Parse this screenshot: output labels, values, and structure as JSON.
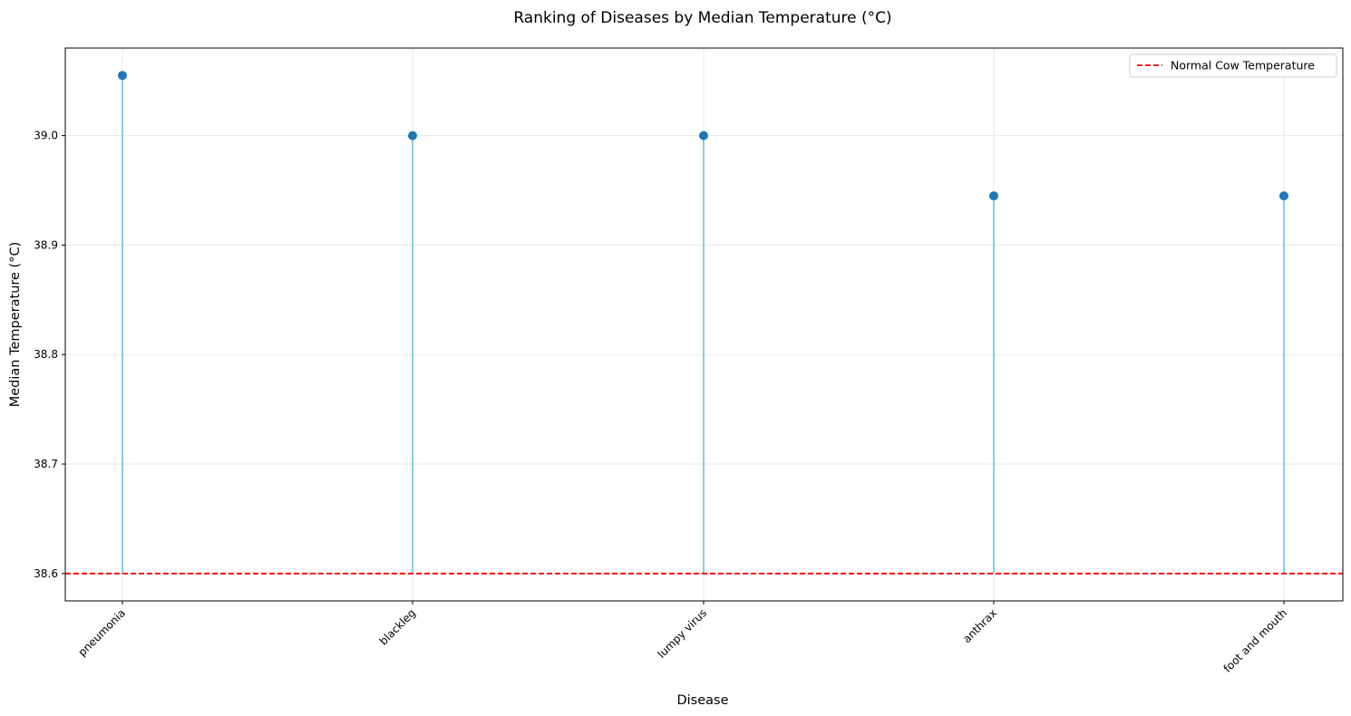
{
  "chart_data": {
    "type": "lollipop",
    "title": "Ranking of Diseases by Median Temperature (°C)",
    "xlabel": "Disease",
    "ylabel": "Median Temperature (°C)",
    "categories": [
      "pneumonia",
      "blackleg",
      "lumpy virus",
      "anthrax",
      "foot and mouth"
    ],
    "values": [
      39.055,
      39.0,
      39.0,
      38.945,
      38.945
    ],
    "baseline": 38.6,
    "ylim": [
      38.575,
      39.08
    ],
    "yticks": [
      "38.6",
      "38.7",
      "38.8",
      "38.9",
      "39.0"
    ],
    "grid": true,
    "reference_line": {
      "value": 38.6,
      "label": "Normal Cow Temperature",
      "style": "dashed",
      "color": "#ff0000"
    },
    "legend": {
      "position": "top-right",
      "entries": [
        "Normal Cow Temperature"
      ]
    },
    "colors": {
      "marker": "#1f77b4",
      "stem": "#87ceeb",
      "reference": "#ff0000"
    }
  }
}
